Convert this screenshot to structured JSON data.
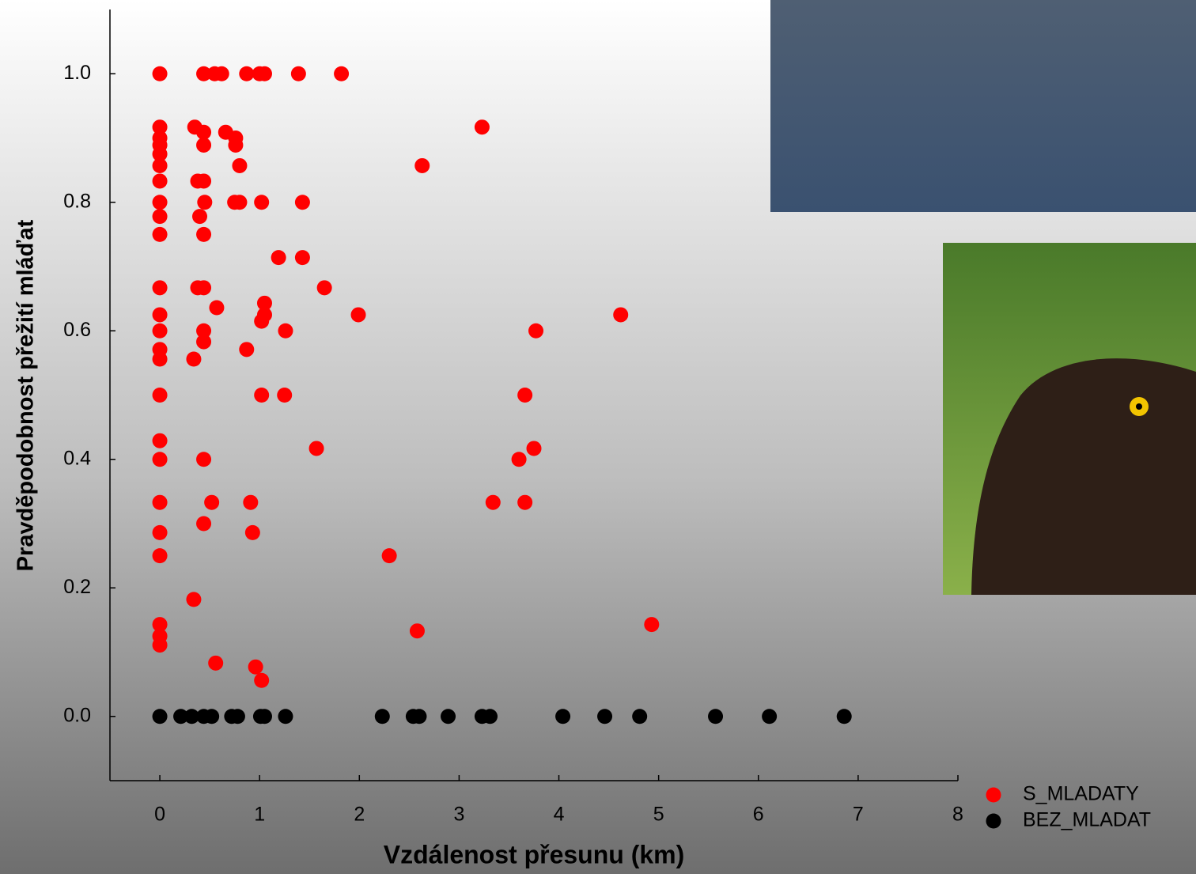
{
  "chart_data": {
    "type": "scatter",
    "x_label": "Vzdálenost přesunu (km)",
    "y_label": "Pravděpodobnost přežití mláďat",
    "xlim": [
      -0.5,
      8
    ],
    "ylim": [
      -0.1,
      1.1
    ],
    "xticks": [
      0,
      1,
      2,
      3,
      4,
      5,
      6,
      7,
      8
    ],
    "yticks": [
      {
        "value": 0,
        "label": "0.0"
      },
      {
        "value": 0.2,
        "label": "0.2"
      },
      {
        "value": 0.4,
        "label": "0.4"
      },
      {
        "value": 0.6,
        "label": "0.6"
      },
      {
        "value": 0.8,
        "label": "0.8"
      },
      {
        "value": 1,
        "label": "1.0"
      }
    ],
    "legend": "bottom-right",
    "series": [
      {
        "name": "S_MLADATY",
        "color": "#ff0000",
        "x": [
          0,
          0,
          0,
          0,
          0,
          0,
          0,
          0,
          0,
          0,
          0,
          0,
          0,
          0,
          0,
          0,
          0,
          0,
          0,
          0,
          0,
          0,
          0,
          0,
          0.44,
          0.55,
          0.62,
          0.87,
          1.0,
          1.05,
          1.39,
          1.82,
          0.35,
          0.44,
          0.44,
          0.66,
          0.76,
          0.76,
          0.8,
          3.23,
          2.63,
          0.38,
          0.44,
          0.45,
          0.75,
          0.8,
          1.02,
          1.43,
          0.4,
          0.44,
          1.19,
          1.43,
          0.38,
          0.44,
          1.65,
          0.57,
          1.05,
          1.05,
          1.02,
          1.99,
          4.62,
          0.44,
          1.26,
          3.77,
          0.44,
          0.87,
          0.34,
          1.02,
          1.25,
          3.66,
          1.57,
          3.75,
          0.44,
          3.6,
          0.52,
          0.91,
          3.34,
          3.66,
          0.44,
          0.93,
          2.3,
          0.34,
          2.58,
          4.93,
          0.56,
          0.96,
          1.02
        ],
        "values": [
          1.0,
          0.917,
          0.9,
          0.889,
          0.875,
          0.857,
          0.833,
          0.8,
          0.778,
          0.75,
          0.667,
          0.625,
          0.6,
          0.571,
          0.556,
          0.5,
          0.429,
          0.4,
          0.333,
          0.286,
          0.25,
          0.143,
          0.125,
          0.111,
          1.0,
          1.0,
          1.0,
          1.0,
          1.0,
          1.0,
          1.0,
          1.0,
          0.917,
          0.909,
          0.889,
          0.909,
          0.9,
          0.889,
          0.857,
          0.917,
          0.857,
          0.833,
          0.833,
          0.8,
          0.8,
          0.8,
          0.8,
          0.8,
          0.778,
          0.75,
          0.714,
          0.714,
          0.667,
          0.667,
          0.667,
          0.636,
          0.643,
          0.625,
          0.615,
          0.625,
          0.625,
          0.6,
          0.6,
          0.6,
          0.583,
          0.571,
          0.556,
          0.5,
          0.5,
          0.5,
          0.417,
          0.417,
          0.4,
          0.4,
          0.333,
          0.333,
          0.333,
          0.333,
          0.3,
          0.286,
          0.25,
          0.182,
          0.133,
          0.143,
          0.083,
          0.077,
          0.056
        ]
      },
      {
        "name": "BEZ_MLADAT",
        "color": "#000000",
        "x": [
          0,
          0.21,
          0.32,
          0.44,
          0.52,
          0.72,
          0.78,
          1.01,
          1.05,
          1.26,
          2.23,
          2.54,
          2.6,
          2.89,
          3.23,
          3.31,
          4.04,
          4.46,
          4.81,
          5.57,
          6.11,
          6.86
        ],
        "values": [
          0,
          0,
          0,
          0,
          0,
          0,
          0,
          0,
          0,
          0,
          0,
          0,
          0,
          0,
          0,
          0,
          0,
          0,
          0,
          0,
          0,
          0
        ]
      }
    ]
  }
}
